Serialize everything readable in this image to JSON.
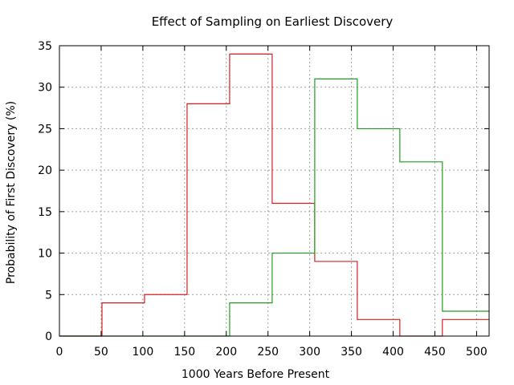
{
  "chart_data": {
    "type": "step",
    "title": "Effect of Sampling on Earliest Discovery",
    "xlabel": "1000 Years Before Present",
    "ylabel": "Probability of First Discovery (%)",
    "xlim": [
      0,
      515
    ],
    "ylim": [
      0,
      35
    ],
    "xticks": [
      0,
      50,
      100,
      150,
      200,
      250,
      300,
      350,
      400,
      450,
      500
    ],
    "yticks": [
      0,
      5,
      10,
      15,
      20,
      25,
      30,
      35
    ],
    "grid": true,
    "series": [
      {
        "name": "red",
        "color": "#d22020",
        "bin_edges": [
          0,
          51,
          102,
          153,
          204,
          255,
          306,
          357,
          408,
          459,
          515
        ],
        "values": [
          0,
          4,
          5,
          28,
          34,
          16,
          9,
          2,
          0,
          2
        ]
      },
      {
        "name": "green",
        "color": "#1ea01e",
        "bin_edges": [
          0,
          51,
          102,
          153,
          204,
          255,
          306,
          357,
          408,
          459,
          515
        ],
        "values": [
          0,
          0,
          0,
          0,
          4,
          10,
          31,
          25,
          21,
          3
        ]
      }
    ]
  }
}
